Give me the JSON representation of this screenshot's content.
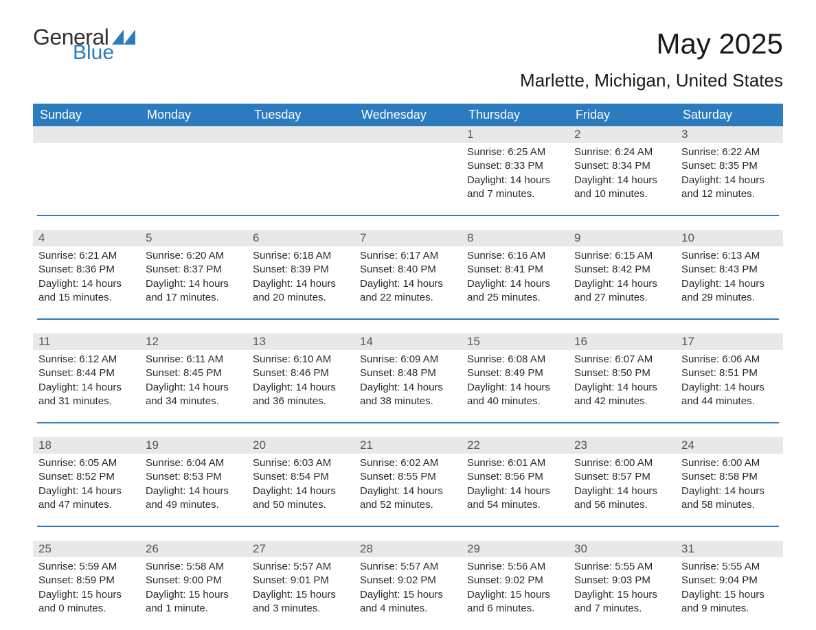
{
  "logo": {
    "word1": "General",
    "word2": "Blue",
    "brand_color": "#2b7bbf"
  },
  "title": "May 2025",
  "location": "Marlette, Michigan, United States",
  "colors": {
    "header_bg": "#2b7bbf",
    "header_text": "#ffffff",
    "daynum_bg": "#e8e8e8",
    "daynum_text": "#555555",
    "body_text": "#2a2a2a",
    "page_bg": "#ffffff",
    "separator": "#2b7bbf"
  },
  "weekdays": [
    "Sunday",
    "Monday",
    "Tuesday",
    "Wednesday",
    "Thursday",
    "Friday",
    "Saturday"
  ],
  "weeks": [
    [
      null,
      null,
      null,
      null,
      {
        "n": "1",
        "sunrise": "Sunrise: 6:25 AM",
        "sunset": "Sunset: 8:33 PM",
        "daylight": "Daylight: 14 hours and 7 minutes."
      },
      {
        "n": "2",
        "sunrise": "Sunrise: 6:24 AM",
        "sunset": "Sunset: 8:34 PM",
        "daylight": "Daylight: 14 hours and 10 minutes."
      },
      {
        "n": "3",
        "sunrise": "Sunrise: 6:22 AM",
        "sunset": "Sunset: 8:35 PM",
        "daylight": "Daylight: 14 hours and 12 minutes."
      }
    ],
    [
      {
        "n": "4",
        "sunrise": "Sunrise: 6:21 AM",
        "sunset": "Sunset: 8:36 PM",
        "daylight": "Daylight: 14 hours and 15 minutes."
      },
      {
        "n": "5",
        "sunrise": "Sunrise: 6:20 AM",
        "sunset": "Sunset: 8:37 PM",
        "daylight": "Daylight: 14 hours and 17 minutes."
      },
      {
        "n": "6",
        "sunrise": "Sunrise: 6:18 AM",
        "sunset": "Sunset: 8:39 PM",
        "daylight": "Daylight: 14 hours and 20 minutes."
      },
      {
        "n": "7",
        "sunrise": "Sunrise: 6:17 AM",
        "sunset": "Sunset: 8:40 PM",
        "daylight": "Daylight: 14 hours and 22 minutes."
      },
      {
        "n": "8",
        "sunrise": "Sunrise: 6:16 AM",
        "sunset": "Sunset: 8:41 PM",
        "daylight": "Daylight: 14 hours and 25 minutes."
      },
      {
        "n": "9",
        "sunrise": "Sunrise: 6:15 AM",
        "sunset": "Sunset: 8:42 PM",
        "daylight": "Daylight: 14 hours and 27 minutes."
      },
      {
        "n": "10",
        "sunrise": "Sunrise: 6:13 AM",
        "sunset": "Sunset: 8:43 PM",
        "daylight": "Daylight: 14 hours and 29 minutes."
      }
    ],
    [
      {
        "n": "11",
        "sunrise": "Sunrise: 6:12 AM",
        "sunset": "Sunset: 8:44 PM",
        "daylight": "Daylight: 14 hours and 31 minutes."
      },
      {
        "n": "12",
        "sunrise": "Sunrise: 6:11 AM",
        "sunset": "Sunset: 8:45 PM",
        "daylight": "Daylight: 14 hours and 34 minutes."
      },
      {
        "n": "13",
        "sunrise": "Sunrise: 6:10 AM",
        "sunset": "Sunset: 8:46 PM",
        "daylight": "Daylight: 14 hours and 36 minutes."
      },
      {
        "n": "14",
        "sunrise": "Sunrise: 6:09 AM",
        "sunset": "Sunset: 8:48 PM",
        "daylight": "Daylight: 14 hours and 38 minutes."
      },
      {
        "n": "15",
        "sunrise": "Sunrise: 6:08 AM",
        "sunset": "Sunset: 8:49 PM",
        "daylight": "Daylight: 14 hours and 40 minutes."
      },
      {
        "n": "16",
        "sunrise": "Sunrise: 6:07 AM",
        "sunset": "Sunset: 8:50 PM",
        "daylight": "Daylight: 14 hours and 42 minutes."
      },
      {
        "n": "17",
        "sunrise": "Sunrise: 6:06 AM",
        "sunset": "Sunset: 8:51 PM",
        "daylight": "Daylight: 14 hours and 44 minutes."
      }
    ],
    [
      {
        "n": "18",
        "sunrise": "Sunrise: 6:05 AM",
        "sunset": "Sunset: 8:52 PM",
        "daylight": "Daylight: 14 hours and 47 minutes."
      },
      {
        "n": "19",
        "sunrise": "Sunrise: 6:04 AM",
        "sunset": "Sunset: 8:53 PM",
        "daylight": "Daylight: 14 hours and 49 minutes."
      },
      {
        "n": "20",
        "sunrise": "Sunrise: 6:03 AM",
        "sunset": "Sunset: 8:54 PM",
        "daylight": "Daylight: 14 hours and 50 minutes."
      },
      {
        "n": "21",
        "sunrise": "Sunrise: 6:02 AM",
        "sunset": "Sunset: 8:55 PM",
        "daylight": "Daylight: 14 hours and 52 minutes."
      },
      {
        "n": "22",
        "sunrise": "Sunrise: 6:01 AM",
        "sunset": "Sunset: 8:56 PM",
        "daylight": "Daylight: 14 hours and 54 minutes."
      },
      {
        "n": "23",
        "sunrise": "Sunrise: 6:00 AM",
        "sunset": "Sunset: 8:57 PM",
        "daylight": "Daylight: 14 hours and 56 minutes."
      },
      {
        "n": "24",
        "sunrise": "Sunrise: 6:00 AM",
        "sunset": "Sunset: 8:58 PM",
        "daylight": "Daylight: 14 hours and 58 minutes."
      }
    ],
    [
      {
        "n": "25",
        "sunrise": "Sunrise: 5:59 AM",
        "sunset": "Sunset: 8:59 PM",
        "daylight": "Daylight: 15 hours and 0 minutes."
      },
      {
        "n": "26",
        "sunrise": "Sunrise: 5:58 AM",
        "sunset": "Sunset: 9:00 PM",
        "daylight": "Daylight: 15 hours and 1 minute."
      },
      {
        "n": "27",
        "sunrise": "Sunrise: 5:57 AM",
        "sunset": "Sunset: 9:01 PM",
        "daylight": "Daylight: 15 hours and 3 minutes."
      },
      {
        "n": "28",
        "sunrise": "Sunrise: 5:57 AM",
        "sunset": "Sunset: 9:02 PM",
        "daylight": "Daylight: 15 hours and 4 minutes."
      },
      {
        "n": "29",
        "sunrise": "Sunrise: 5:56 AM",
        "sunset": "Sunset: 9:02 PM",
        "daylight": "Daylight: 15 hours and 6 minutes."
      },
      {
        "n": "30",
        "sunrise": "Sunrise: 5:55 AM",
        "sunset": "Sunset: 9:03 PM",
        "daylight": "Daylight: 15 hours and 7 minutes."
      },
      {
        "n": "31",
        "sunrise": "Sunrise: 5:55 AM",
        "sunset": "Sunset: 9:04 PM",
        "daylight": "Daylight: 15 hours and 9 minutes."
      }
    ]
  ]
}
